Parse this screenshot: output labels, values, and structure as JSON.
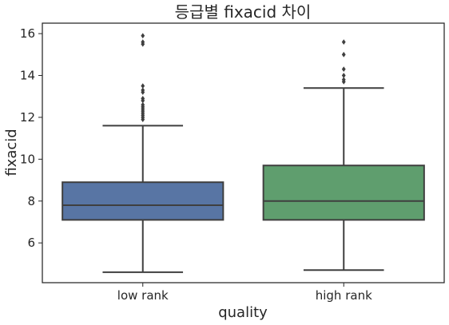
{
  "chart_data": {
    "type": "box",
    "title": "등급별 fixacid 차이",
    "xlabel": "quality",
    "ylabel": "fixacid",
    "ylim": [
      4.1,
      16.5
    ],
    "yticks": [
      6,
      8,
      10,
      12,
      14,
      16
    ],
    "grid": false,
    "categories": [
      "low rank",
      "high rank"
    ],
    "series": [
      {
        "category": "low rank",
        "color": "#5875A4",
        "whisker_low": 4.6,
        "q1": 7.1,
        "median": 7.8,
        "q3": 8.9,
        "whisker_high": 11.6,
        "outliers": [
          11.9,
          12.0,
          12.1,
          12.2,
          12.3,
          12.4,
          12.5,
          12.6,
          12.8,
          12.9,
          13.2,
          13.3,
          13.5,
          15.5,
          15.6,
          15.9
        ]
      },
      {
        "category": "high rank",
        "color": "#5F9E6E",
        "whisker_low": 4.7,
        "q1": 7.1,
        "median": 8.0,
        "q3": 9.7,
        "whisker_high": 13.4,
        "outliers": [
          13.7,
          13.8,
          14.0,
          14.3,
          15.0,
          15.6
        ]
      }
    ]
  }
}
